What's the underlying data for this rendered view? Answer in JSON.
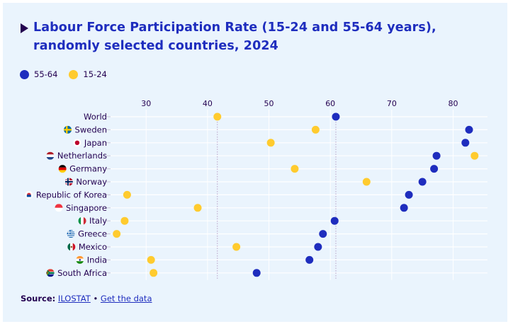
{
  "header": {
    "title": "Labour Force Participation Rate (15-24 and 55-64 years), randomly selected countries, 2024"
  },
  "colors": {
    "series_55_64": "#1e2dbe",
    "series_15_24": "#ffcb2e",
    "reference_line": "#b8a1c7",
    "grid": "#ffffff",
    "text": "#230050",
    "panel_bg": "#eaf4fd"
  },
  "legend": [
    {
      "label": "55-64",
      "color": "#1e2dbe"
    },
    {
      "label": "15-24",
      "color": "#ffcb2e"
    }
  ],
  "footer": {
    "source_label": "Source:",
    "source_link": "ILOSTAT",
    "separator": "•",
    "data_link": "Get the data"
  },
  "chart_data": {
    "type": "scatter",
    "subtype": "dot-plot",
    "title": "Labour Force Participation Rate (15-24 and 55-64 years), randomly selected countries, 2024",
    "xlabel": "",
    "ylabel": "",
    "xlim": [
      24.2,
      85.6
    ],
    "xticks": [
      30,
      40,
      50,
      60,
      70,
      80
    ],
    "grid": true,
    "legend_position": "top-left",
    "reference_lines": [
      {
        "series": "15-24",
        "label": "World",
        "value": 41.6
      },
      {
        "series": "55-64",
        "label": "World",
        "value": 60.9
      }
    ],
    "categories": [
      {
        "name": "World",
        "flag": "none"
      },
      {
        "name": "Sweden",
        "flag": "sweden-flag"
      },
      {
        "name": "Japan",
        "flag": "japan-flag"
      },
      {
        "name": "Netherlands",
        "flag": "netherlands-flag"
      },
      {
        "name": "Germany",
        "flag": "germany-flag"
      },
      {
        "name": "Norway",
        "flag": "norway-flag"
      },
      {
        "name": "Republic of Korea",
        "flag": "korea-flag"
      },
      {
        "name": "Singapore",
        "flag": "singapore-flag"
      },
      {
        "name": "Italy",
        "flag": "italy-flag"
      },
      {
        "name": "Greece",
        "flag": "greece-flag"
      },
      {
        "name": "Mexico",
        "flag": "mexico-flag"
      },
      {
        "name": "India",
        "flag": "india-flag"
      },
      {
        "name": "South Africa",
        "flag": "south-africa-flag"
      }
    ],
    "series": [
      {
        "name": "55-64",
        "color": "#1e2dbe",
        "values": [
          60.9,
          82.6,
          82.0,
          77.3,
          76.9,
          75.0,
          72.8,
          72.0,
          60.7,
          58.8,
          58.0,
          56.6,
          48.0
        ]
      },
      {
        "name": "15-24",
        "color": "#ffcb2e",
        "values": [
          41.6,
          57.6,
          50.3,
          83.5,
          54.2,
          65.9,
          26.9,
          38.4,
          26.5,
          25.2,
          44.7,
          30.8,
          31.2
        ]
      }
    ]
  }
}
